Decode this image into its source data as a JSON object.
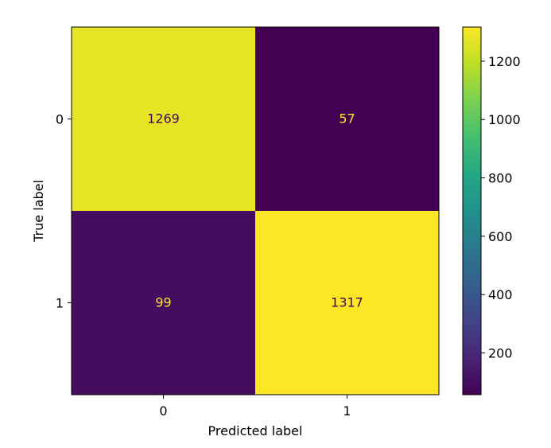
{
  "chart_data": {
    "type": "heatmap",
    "title": "",
    "xlabel": "Predicted label",
    "ylabel": "True label",
    "x_categories": [
      "0",
      "1"
    ],
    "y_categories": [
      "0",
      "1"
    ],
    "matrix": [
      [
        1269,
        57
      ],
      [
        99,
        1317
      ]
    ],
    "colormap": "viridis",
    "colorbar": {
      "range": [
        57,
        1317
      ],
      "ticks": [
        200,
        400,
        600,
        800,
        1000,
        1200
      ]
    },
    "text_color_on_light": "#440154",
    "text_color_on_dark": "#fde725"
  }
}
